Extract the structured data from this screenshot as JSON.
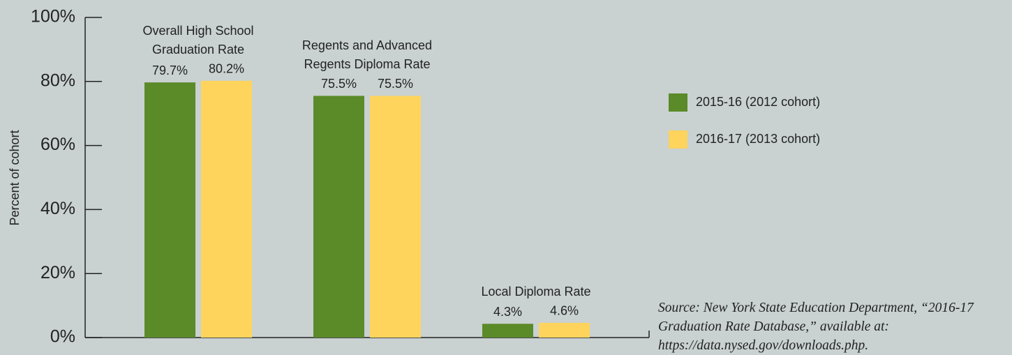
{
  "chart_data": {
    "type": "bar",
    "categories": [
      "Overall High School Graduation Rate",
      "Regents and Advanced Regents Diploma Rate",
      "Local Diploma Rate"
    ],
    "series": [
      {
        "name": "2015-16 (2012 cohort)",
        "color": "#5b8a28",
        "values": [
          79.7,
          75.5,
          4.3
        ],
        "value_labels": [
          "79.7%",
          "75.5%",
          "4.3%"
        ]
      },
      {
        "name": "2016-17 (2013 cohort)",
        "color": "#ffd45c",
        "values": [
          80.2,
          75.5,
          4.6
        ],
        "value_labels": [
          "80.2%",
          "75.5%",
          "4.6%"
        ]
      }
    ],
    "y_axis_label": "Percent of cohort",
    "ylim": [
      0,
      100
    ],
    "yticks": [
      {
        "value": 0,
        "label": "0%"
      },
      {
        "value": 20,
        "label": "20%"
      },
      {
        "value": 40,
        "label": "40%"
      },
      {
        "value": 60,
        "label": "60%"
      },
      {
        "value": 80,
        "label": "80%"
      },
      {
        "value": 100,
        "label": "100%"
      }
    ],
    "legend": "right",
    "source": "Source: New York State Education Department, “2016-17 Graduation Rate Database,” available at: https://data.nysed.gov/downloads.php."
  }
}
